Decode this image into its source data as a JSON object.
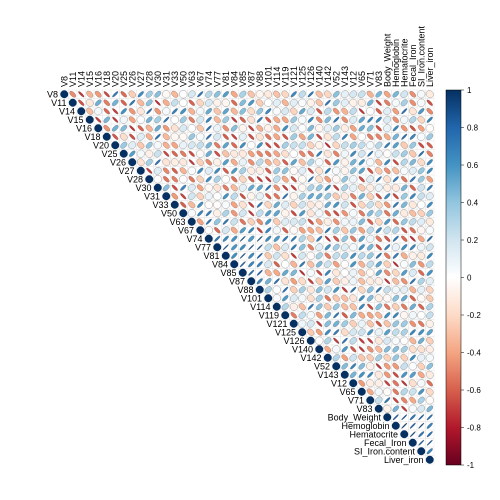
{
  "chart_data": {
    "type": "heatmap",
    "subtype": "upper-triangular correlogram (ellipse cells, circle diagonal)",
    "variables": [
      "V8",
      "V11",
      "V14",
      "V15",
      "V16",
      "V18",
      "V20",
      "V25",
      "V26",
      "V27",
      "V28",
      "V30",
      "V31",
      "V33",
      "V50",
      "V63",
      "V67",
      "V74",
      "V77",
      "V81",
      "V84",
      "V85",
      "V87",
      "V88",
      "V101",
      "V114",
      "V119",
      "V121",
      "V125",
      "V126",
      "V140",
      "V142",
      "V52",
      "V143",
      "V12",
      "V65",
      "V71",
      "V83",
      "Body_Weight",
      "Hemoglobin",
      "Hematocrite",
      "Fecal_Iron",
      "SI_Iron.content",
      "Liver_iron"
    ],
    "color_scale": {
      "range": [
        -1,
        1
      ],
      "ticks": [
        -1,
        -0.8,
        -0.6,
        -0.4,
        -0.2,
        0,
        0.2,
        0.4,
        0.6,
        0.8,
        1
      ],
      "tick_labels": [
        "-1",
        "-0.8",
        "-0.6",
        "-0.4",
        "-0.2",
        "0",
        "0.2",
        "0.4",
        "0.6",
        "0.8",
        "1"
      ],
      "negative_color": "#67001f",
      "mid_color": "#ffffff",
      "positive_color": "#053061"
    },
    "diagonal_value": 1,
    "legend_placement": "right",
    "grid": true
  }
}
